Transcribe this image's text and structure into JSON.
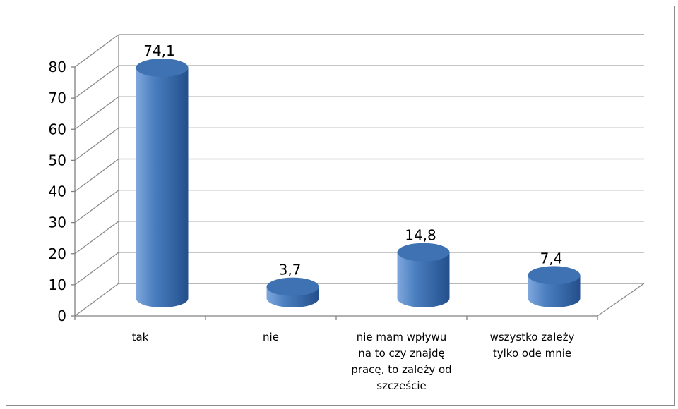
{
  "chart_data": {
    "type": "bar",
    "style": "3d-cylinder",
    "categories": [
      [
        "tak"
      ],
      [
        "nie"
      ],
      [
        "nie mam wpływu",
        "na to czy znajdę",
        "pracę, to zależy od",
        "szczeście"
      ],
      [
        "wszystko zależy",
        "tylko ode mnie"
      ]
    ],
    "values": [
      74.1,
      3.7,
      14.8,
      7.4
    ],
    "data_labels": [
      "74,1",
      "3,7",
      "14,8",
      "7,4"
    ],
    "y_ticks": [
      "0",
      "10",
      "20",
      "30",
      "40",
      "50",
      "60",
      "70",
      "80"
    ],
    "ylim": [
      0,
      80
    ],
    "grid": true,
    "legend": "none",
    "colors": {
      "bar_light": "#7fa7dc",
      "bar_mid": "#4a7ebf",
      "bar_dark": "#234f8c",
      "bar_top": "#3f72b3",
      "grid": "#8c8c8c",
      "axis": "#808080"
    }
  }
}
